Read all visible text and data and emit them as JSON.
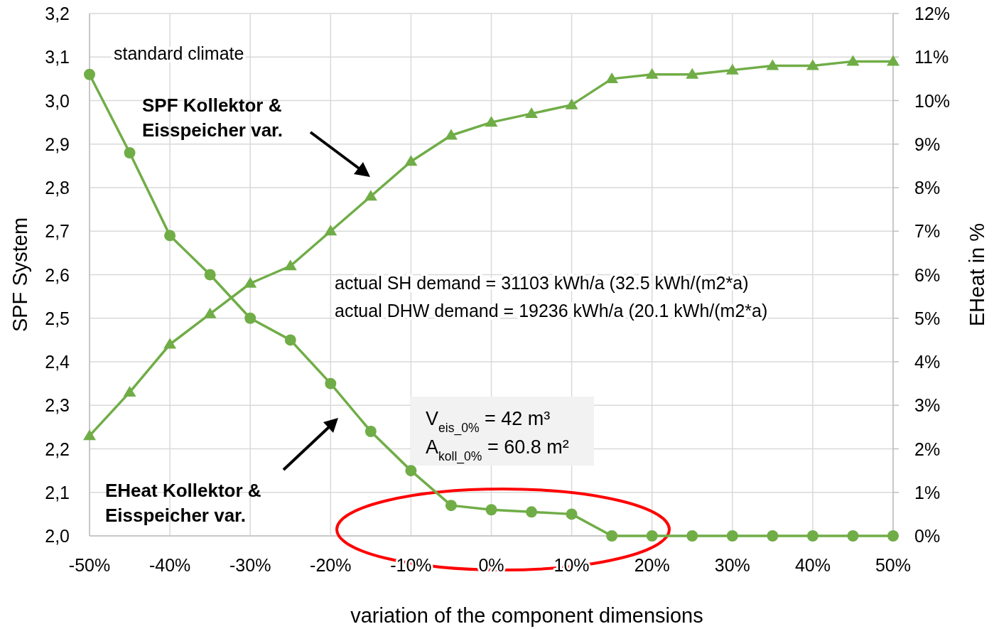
{
  "chart_data": {
    "type": "line",
    "xlabel": "variation of the component dimensions",
    "ylabel": "SPF System",
    "y2label": "EHeat in %",
    "x": [
      -50,
      -45,
      -40,
      -35,
      -30,
      -25,
      -20,
      -15,
      -10,
      -5,
      0,
      5,
      10,
      15,
      20,
      25,
      30,
      35,
      40,
      45,
      50
    ],
    "series": [
      {
        "color": "#70ad47",
        "marker": "triangle",
        "values": [
          2.23,
          2.33,
          2.44,
          2.51,
          2.58,
          2.62,
          2.7,
          2.78,
          2.86,
          2.92,
          2.95,
          2.97,
          2.99,
          3.05,
          3.06,
          3.06,
          3.07,
          3.08,
          3.08,
          3.09,
          3.09
        ]
      },
      {
        "color": "#70ad47",
        "marker": "circle",
        "axis": "y2",
        "values": [
          10.6,
          8.8,
          6.9,
          6.0,
          5.0,
          4.5,
          3.5,
          2.4,
          1.5,
          0.7,
          0.6,
          0.55,
          0.5,
          0,
          0,
          0,
          0,
          0,
          0,
          0,
          0
        ]
      }
    ],
    "xlim": [
      -50,
      50
    ],
    "xticks": [
      {
        "value": -50,
        "label": "-50%"
      },
      {
        "value": -40,
        "label": "-40%"
      },
      {
        "value": -30,
        "label": "-30%"
      },
      {
        "value": -20,
        "label": "-20%"
      },
      {
        "value": -10,
        "label": "-10%"
      },
      {
        "value": 0,
        "label": "0%"
      },
      {
        "value": 10,
        "label": "10%"
      },
      {
        "value": 20,
        "label": "20%"
      },
      {
        "value": 30,
        "label": "30%"
      },
      {
        "value": 40,
        "label": "40%"
      },
      {
        "value": 50,
        "label": "50%"
      }
    ],
    "ylim": [
      2.0,
      3.2
    ],
    "yticks": [
      {
        "value": 2.0,
        "label": "2,0"
      },
      {
        "value": 2.1,
        "label": "2,1"
      },
      {
        "value": 2.2,
        "label": "2,2"
      },
      {
        "value": 2.3,
        "label": "2,3"
      },
      {
        "value": 2.4,
        "label": "2,4"
      },
      {
        "value": 2.5,
        "label": "2,5"
      },
      {
        "value": 2.6,
        "label": "2,6"
      },
      {
        "value": 2.7,
        "label": "2,7"
      },
      {
        "value": 2.8,
        "label": "2,8"
      },
      {
        "value": 2.9,
        "label": "2,9"
      },
      {
        "value": 3.0,
        "label": "3,0"
      },
      {
        "value": 3.1,
        "label": "3,1"
      },
      {
        "value": 3.2,
        "label": "3,2"
      }
    ],
    "y2lim": [
      0,
      12
    ],
    "y2ticks": [
      {
        "value": 0,
        "label": "0%"
      },
      {
        "value": 1,
        "label": "1%"
      },
      {
        "value": 2,
        "label": "2%"
      },
      {
        "value": 3,
        "label": "3%"
      },
      {
        "value": 4,
        "label": "4%"
      },
      {
        "value": 5,
        "label": "5%"
      },
      {
        "value": 6,
        "label": "6%"
      },
      {
        "value": 7,
        "label": "7%"
      },
      {
        "value": 8,
        "label": "8%"
      },
      {
        "value": 9,
        "label": "9%"
      },
      {
        "value": 10,
        "label": "10%"
      },
      {
        "value": 11,
        "label": "11%"
      },
      {
        "value": 12,
        "label": "12%"
      }
    ],
    "grid": true,
    "annotations": [
      "standard climate",
      "actual SH demand = 31103 kWh/a (32.5 kWh/(m2*a)",
      "actual DHW demand = 19236 kWh/a (20.1 kWh/(m2*a)",
      "V$_{eis_0%}$ = 42 m³",
      "A$_{koll_0%}$ = 60.8 m²",
      "SPF Kollektor & Eisspeicher var.",
      "EHeat Kollektor & Eisspeicher var."
    ]
  }
}
